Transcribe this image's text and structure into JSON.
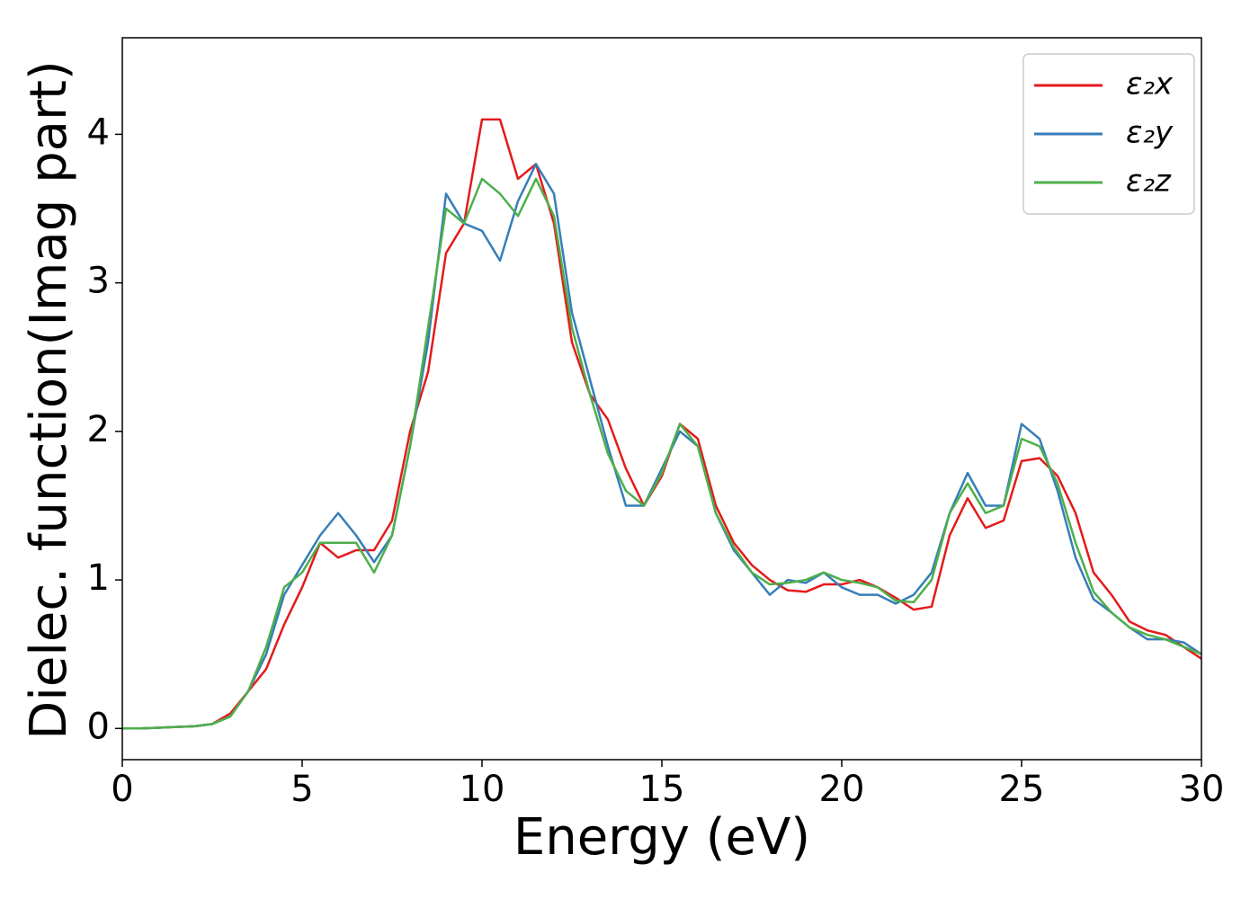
{
  "chart_data": {
    "type": "line",
    "xlabel": "Energy (eV)",
    "ylabel": "Dielec. function(Imag part)",
    "x": [
      0,
      0.5,
      1,
      1.5,
      2,
      2.5,
      3,
      3.5,
      4,
      4.5,
      5,
      5.5,
      6,
      6.5,
      7,
      7.5,
      8,
      8.5,
      9,
      9.5,
      10,
      10.5,
      11,
      11.5,
      12,
      12.5,
      13,
      13.5,
      14,
      14.5,
      15,
      15.5,
      16,
      16.5,
      17,
      17.5,
      18,
      18.5,
      19,
      19.5,
      20,
      20.5,
      21,
      21.5,
      22,
      22.5,
      23,
      23.5,
      24,
      24.5,
      25,
      25.5,
      26,
      26.5,
      27,
      27.5,
      28,
      28.5,
      29,
      29.5,
      30
    ],
    "series": [
      {
        "name": "ε₂x",
        "color": "#e41a1c",
        "values": [
          0,
          0,
          0.005,
          0.01,
          0.015,
          0.03,
          0.1,
          0.25,
          0.4,
          0.7,
          0.95,
          1.25,
          1.15,
          1.2,
          1.2,
          1.4,
          2.0,
          2.4,
          3.2,
          3.4,
          4.1,
          4.1,
          3.7,
          3.8,
          3.4,
          2.6,
          2.25,
          2.08,
          1.75,
          1.5,
          1.7,
          2.05,
          1.95,
          1.5,
          1.25,
          1.1,
          1.0,
          0.93,
          0.92,
          0.97,
          0.97,
          1.0,
          0.95,
          0.88,
          0.8,
          0.82,
          1.3,
          1.55,
          1.35,
          1.4,
          1.8,
          1.82,
          1.7,
          1.45,
          1.05,
          0.9,
          0.72,
          0.66,
          0.63,
          0.55,
          0.47
        ]
      },
      {
        "name": "ε₂y",
        "color": "#377eb8",
        "values": [
          0,
          0,
          0.005,
          0.01,
          0.015,
          0.03,
          0.08,
          0.25,
          0.5,
          0.9,
          1.1,
          1.3,
          1.45,
          1.3,
          1.12,
          1.3,
          1.9,
          2.6,
          3.6,
          3.4,
          3.35,
          3.15,
          3.55,
          3.8,
          3.6,
          2.8,
          2.35,
          1.9,
          1.5,
          1.5,
          1.75,
          2.0,
          1.9,
          1.45,
          1.2,
          1.05,
          0.9,
          1.0,
          0.98,
          1.05,
          0.95,
          0.9,
          0.9,
          0.84,
          0.9,
          1.05,
          1.45,
          1.72,
          1.5,
          1.5,
          2.05,
          1.95,
          1.6,
          1.15,
          0.87,
          0.78,
          0.68,
          0.6,
          0.6,
          0.58,
          0.5
        ]
      },
      {
        "name": "ε₂z",
        "color": "#4daf4a",
        "values": [
          0,
          0,
          0.005,
          0.01,
          0.015,
          0.03,
          0.08,
          0.25,
          0.55,
          0.95,
          1.05,
          1.25,
          1.25,
          1.25,
          1.05,
          1.3,
          1.9,
          2.7,
          3.5,
          3.4,
          3.7,
          3.6,
          3.45,
          3.7,
          3.45,
          2.7,
          2.25,
          1.85,
          1.6,
          1.5,
          1.72,
          2.05,
          1.9,
          1.45,
          1.22,
          1.05,
          0.97,
          0.98,
          1.0,
          1.05,
          1.0,
          0.98,
          0.95,
          0.86,
          0.85,
          1.0,
          1.45,
          1.65,
          1.45,
          1.5,
          1.95,
          1.9,
          1.65,
          1.25,
          0.92,
          0.78,
          0.68,
          0.63,
          0.6,
          0.55,
          0.5
        ]
      }
    ],
    "xlim": [
      0,
      30
    ],
    "xticks": [
      0,
      5,
      10,
      15,
      20,
      25,
      30
    ],
    "ylim": [
      -0.21,
      4.65
    ],
    "yticks": [
      0,
      1,
      2,
      3,
      4
    ],
    "grid": false,
    "legend": "upper right"
  }
}
